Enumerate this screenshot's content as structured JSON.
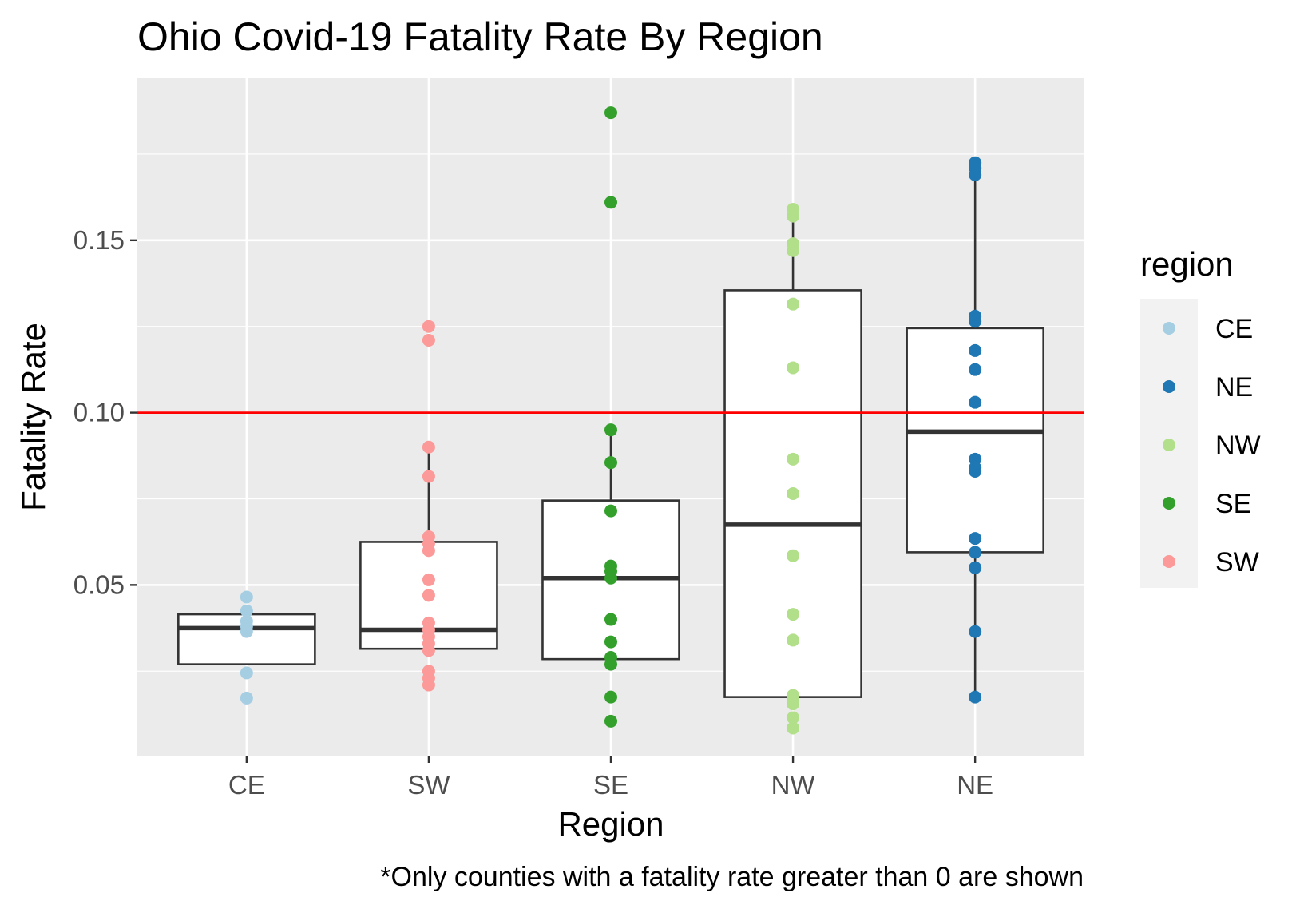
{
  "chart_data": {
    "type": "boxplot",
    "title": "Ohio Covid-19 Fatality Rate By Region",
    "xlabel": "Region",
    "ylabel": "Fatality Rate",
    "caption": "*Only counties with a fatality rate greater than 0 are shown",
    "categories": [
      "CE",
      "SW",
      "SE",
      "NW",
      "NE"
    ],
    "ylim": [
      0.0005,
      0.197
    ],
    "y_ticks": [
      0.05,
      0.1,
      0.15
    ],
    "y_tick_labels": [
      "0.05",
      "0.10",
      "0.15"
    ],
    "grid": true,
    "reference_line": {
      "y": 0.1,
      "color": "#ff0000"
    },
    "legend": {
      "title": "region",
      "position": "right",
      "entries": [
        {
          "label": "CE",
          "color": "#a6cee3"
        },
        {
          "label": "NE",
          "color": "#1f78b4"
        },
        {
          "label": "NW",
          "color": "#b2df8a"
        },
        {
          "label": "SE",
          "color": "#33a02c"
        },
        {
          "label": "SW",
          "color": "#fb9a99"
        }
      ]
    },
    "boxes": [
      {
        "category": "CE",
        "min": 0.027,
        "q1": 0.027,
        "median": 0.0375,
        "q3": 0.0415,
        "max": 0.0415
      },
      {
        "category": "SW",
        "min": 0.0315,
        "q1": 0.0315,
        "median": 0.037,
        "q3": 0.0625,
        "max": 0.09
      },
      {
        "category": "SE",
        "min": 0.0285,
        "q1": 0.0285,
        "median": 0.052,
        "q3": 0.0745,
        "max": 0.095
      },
      {
        "category": "NW",
        "min": 0.0175,
        "q1": 0.0175,
        "median": 0.0675,
        "q3": 0.1355,
        "max": 0.159
      },
      {
        "category": "NE",
        "min": 0.0175,
        "q1": 0.0595,
        "median": 0.0945,
        "q3": 0.1245,
        "max": 0.172
      }
    ],
    "points": [
      {
        "category": "CE",
        "color": "#a6cee3",
        "values": [
          0.0465,
          0.0425,
          0.0395,
          0.038,
          0.0365,
          0.0245,
          0.0172
        ]
      },
      {
        "category": "SW",
        "color": "#fb9a99",
        "values": [
          0.125,
          0.121,
          0.09,
          0.0815,
          0.064,
          0.062,
          0.06,
          0.0515,
          0.047,
          0.039,
          0.037,
          0.035,
          0.033,
          0.031,
          0.025,
          0.023,
          0.021
        ]
      },
      {
        "category": "SE",
        "color": "#33a02c",
        "values": [
          0.187,
          0.161,
          0.095,
          0.0855,
          0.0715,
          0.0555,
          0.054,
          0.052,
          0.04,
          0.0335,
          0.029,
          0.027,
          0.0175,
          0.0105
        ]
      },
      {
        "category": "NW",
        "color": "#b2df8a",
        "values": [
          0.159,
          0.157,
          0.149,
          0.147,
          0.1315,
          0.113,
          0.0865,
          0.0765,
          0.0585,
          0.0415,
          0.034,
          0.018,
          0.0165,
          0.0155,
          0.0115,
          0.0085
        ]
      },
      {
        "category": "NE",
        "color": "#1f78b4",
        "values": [
          0.1725,
          0.171,
          0.169,
          0.128,
          0.1265,
          0.118,
          0.1125,
          0.103,
          0.0865,
          0.084,
          0.083,
          0.0635,
          0.0595,
          0.055,
          0.0365,
          0.0175
        ]
      }
    ]
  }
}
